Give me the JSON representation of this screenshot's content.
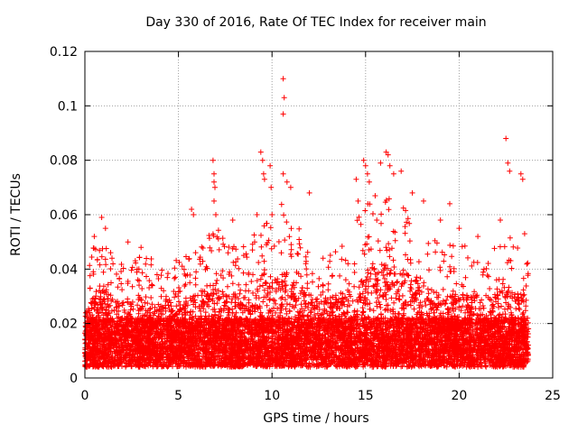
{
  "chart_data": {
    "type": "scatter",
    "title": "Day 330 of 2016, Rate Of TEC Index for receiver main",
    "xlabel": "GPS time / hours",
    "ylabel": "ROTI / TECUs",
    "xlim": [
      0,
      25
    ],
    "ylim": [
      0,
      0.12
    ],
    "xticks": [
      "0",
      "5",
      "10",
      "15",
      "20",
      "25"
    ],
    "yticks": [
      "0",
      "0.02",
      "0.04",
      "0.06",
      "0.08",
      "0.1",
      "0.12"
    ],
    "grid": true,
    "marker": "+",
    "color": "#ff0000",
    "series": [
      {
        "name": "ROTI",
        "envelope_x": [
          0.0,
          0.5,
          1.0,
          1.5,
          2.0,
          2.5,
          3.0,
          3.5,
          4.0,
          4.5,
          5.0,
          5.5,
          6.0,
          6.5,
          7.0,
          7.5,
          8.0,
          8.5,
          9.0,
          9.5,
          10.0,
          10.5,
          11.0,
          11.5,
          12.0,
          12.5,
          13.0,
          13.5,
          14.0,
          14.5,
          15.0,
          15.5,
          16.0,
          16.5,
          17.0,
          17.5,
          18.0,
          18.5,
          19.0,
          19.5,
          20.0,
          20.5,
          21.0,
          21.5,
          22.0,
          22.5,
          23.0,
          23.5,
          23.7
        ],
        "envelope_y": [
          0.035,
          0.045,
          0.05,
          0.042,
          0.04,
          0.04,
          0.042,
          0.04,
          0.04,
          0.042,
          0.04,
          0.042,
          0.045,
          0.05,
          0.055,
          0.045,
          0.045,
          0.045,
          0.05,
          0.058,
          0.055,
          0.06,
          0.058,
          0.05,
          0.045,
          0.045,
          0.042,
          0.045,
          0.05,
          0.055,
          0.06,
          0.065,
          0.065,
          0.062,
          0.06,
          0.055,
          0.05,
          0.048,
          0.045,
          0.045,
          0.045,
          0.045,
          0.045,
          0.045,
          0.045,
          0.05,
          0.045,
          0.045,
          0.04
        ],
        "outliers": [
          [
            0.5,
            0.052
          ],
          [
            0.9,
            0.059
          ],
          [
            1.1,
            0.055
          ],
          [
            2.3,
            0.05
          ],
          [
            3.0,
            0.048
          ],
          [
            5.7,
            0.062
          ],
          [
            5.8,
            0.06
          ],
          [
            6.85,
            0.08
          ],
          [
            6.9,
            0.075
          ],
          [
            6.9,
            0.072
          ],
          [
            6.95,
            0.07
          ],
          [
            6.9,
            0.065
          ],
          [
            7.0,
            0.06
          ],
          [
            7.9,
            0.058
          ],
          [
            9.2,
            0.06
          ],
          [
            9.4,
            0.083
          ],
          [
            9.5,
            0.08
          ],
          [
            9.55,
            0.075
          ],
          [
            9.6,
            0.073
          ],
          [
            9.9,
            0.078
          ],
          [
            9.95,
            0.07
          ],
          [
            10.0,
            0.06
          ],
          [
            10.6,
            0.11
          ],
          [
            10.65,
            0.103
          ],
          [
            10.6,
            0.097
          ],
          [
            10.6,
            0.075
          ],
          [
            10.8,
            0.072
          ],
          [
            11.0,
            0.07
          ],
          [
            12.0,
            0.068
          ],
          [
            14.5,
            0.073
          ],
          [
            14.6,
            0.065
          ],
          [
            14.9,
            0.08
          ],
          [
            15.0,
            0.078
          ],
          [
            15.1,
            0.075
          ],
          [
            15.2,
            0.072
          ],
          [
            15.8,
            0.079
          ],
          [
            16.1,
            0.083
          ],
          [
            16.2,
            0.082
          ],
          [
            16.3,
            0.078
          ],
          [
            16.5,
            0.075
          ],
          [
            16.9,
            0.076
          ],
          [
            17.5,
            0.068
          ],
          [
            18.1,
            0.065
          ],
          [
            19.5,
            0.064
          ],
          [
            19.0,
            0.058
          ],
          [
            20.0,
            0.055
          ],
          [
            21.0,
            0.052
          ],
          [
            22.2,
            0.058
          ],
          [
            22.5,
            0.088
          ],
          [
            22.6,
            0.079
          ],
          [
            22.7,
            0.076
          ],
          [
            23.3,
            0.075
          ],
          [
            23.4,
            0.073
          ],
          [
            23.5,
            0.053
          ]
        ]
      }
    ]
  }
}
